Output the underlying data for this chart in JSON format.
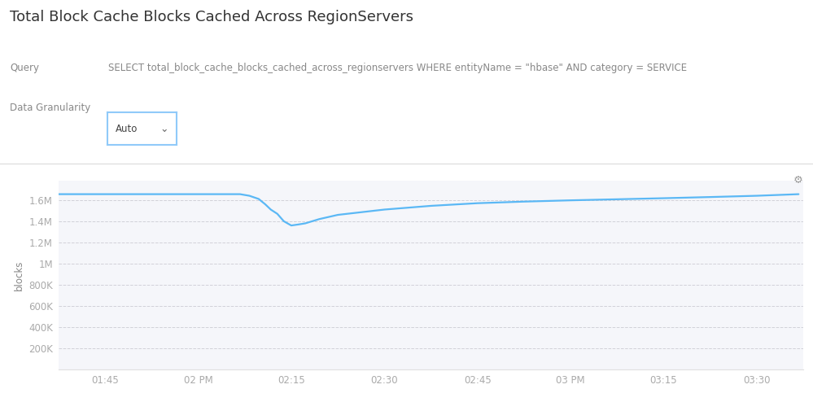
{
  "title": "Total Block Cache Blocks Cached Across RegionServers",
  "query_label": "Query",
  "query_text": "SELECT total_block_cache_blocks_cached_across_regionservers WHERE entityName = \"hbase\" AND category = SERVICE",
  "granularity_label": "Data Granularity",
  "granularity_value": "Auto",
  "ylabel": "blocks",
  "background_color": "#ffffff",
  "plot_bg_color": "#f5f6fa",
  "line_color": "#5bb8f5",
  "grid_color": "#c8c8d0",
  "x_ticks": [
    "01:45",
    "02 PM",
    "02:15",
    "02:30",
    "02:45",
    "03 PM",
    "03:15",
    "03:30"
  ],
  "x_tick_positions": [
    1,
    2,
    3,
    4,
    5,
    6,
    7,
    8
  ],
  "y_tick_values": [
    200000,
    400000,
    600000,
    800000,
    1000000,
    1200000,
    1400000,
    1600000
  ],
  "ylim": [
    0,
    1780000
  ],
  "xlim": [
    0.5,
    8.5
  ],
  "x_data": [
    0.5,
    1.0,
    1.5,
    2.0,
    2.45,
    2.55,
    2.65,
    2.72,
    2.78,
    2.85,
    2.92,
    3.0,
    3.08,
    3.15,
    3.3,
    3.5,
    4.0,
    4.5,
    5.0,
    5.5,
    6.0,
    6.5,
    7.0,
    7.5,
    8.0,
    8.45
  ],
  "y_data": [
    1655000,
    1655000,
    1655000,
    1655000,
    1655000,
    1640000,
    1610000,
    1560000,
    1510000,
    1470000,
    1400000,
    1360000,
    1370000,
    1380000,
    1420000,
    1460000,
    1510000,
    1545000,
    1570000,
    1585000,
    1597000,
    1607000,
    1617000,
    1628000,
    1640000,
    1655000
  ],
  "title_fontsize": 13,
  "label_fontsize": 8.5,
  "tick_fontsize": 8.5,
  "title_color": "#333333",
  "label_color": "#888888",
  "tick_color": "#aaaaaa",
  "separator_color": "#e0e0e0",
  "dropdown_border_color": "#90caf9",
  "gear_color": "#999999"
}
